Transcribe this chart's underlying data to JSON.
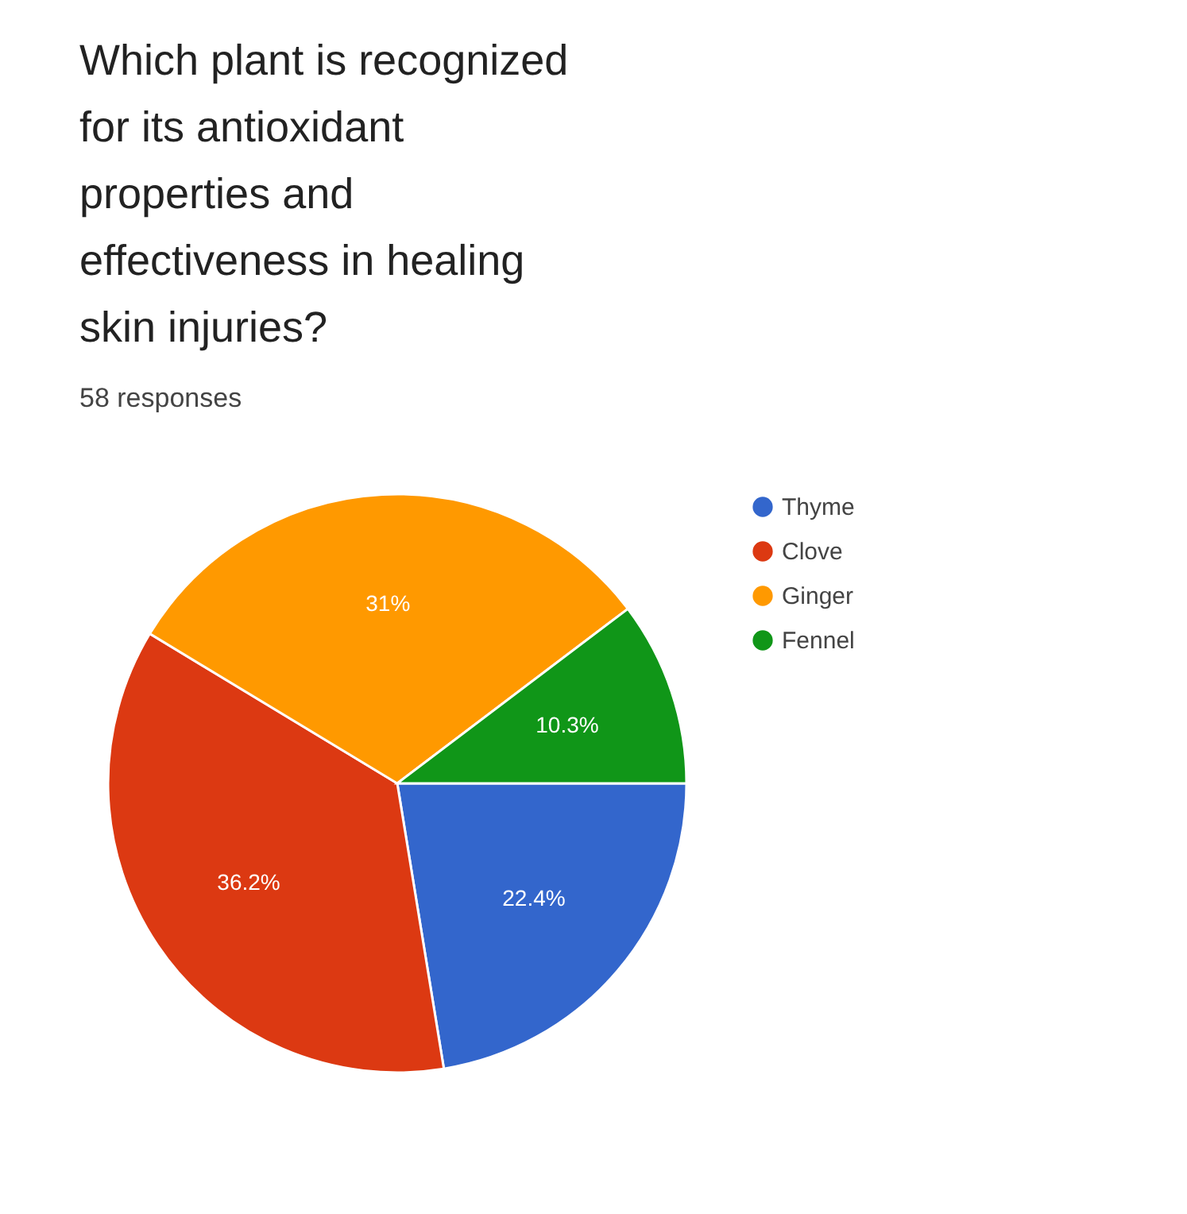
{
  "chart_data": {
    "type": "pie",
    "title": "Which plant is recognized for its antioxidant properties and effectiveness in healing skin injuries?",
    "subtitle": "58 responses",
    "categories": [
      "Thyme",
      "Clove",
      "Ginger",
      "Fennel"
    ],
    "values": [
      22.4,
      36.2,
      31,
      10.3
    ],
    "colors": [
      "#3366cc",
      "#dc3912",
      "#ff9900",
      "#109618"
    ],
    "value_labels": [
      "22.4%",
      "36.2%",
      "31%",
      "10.3%"
    ],
    "legend": "right"
  }
}
